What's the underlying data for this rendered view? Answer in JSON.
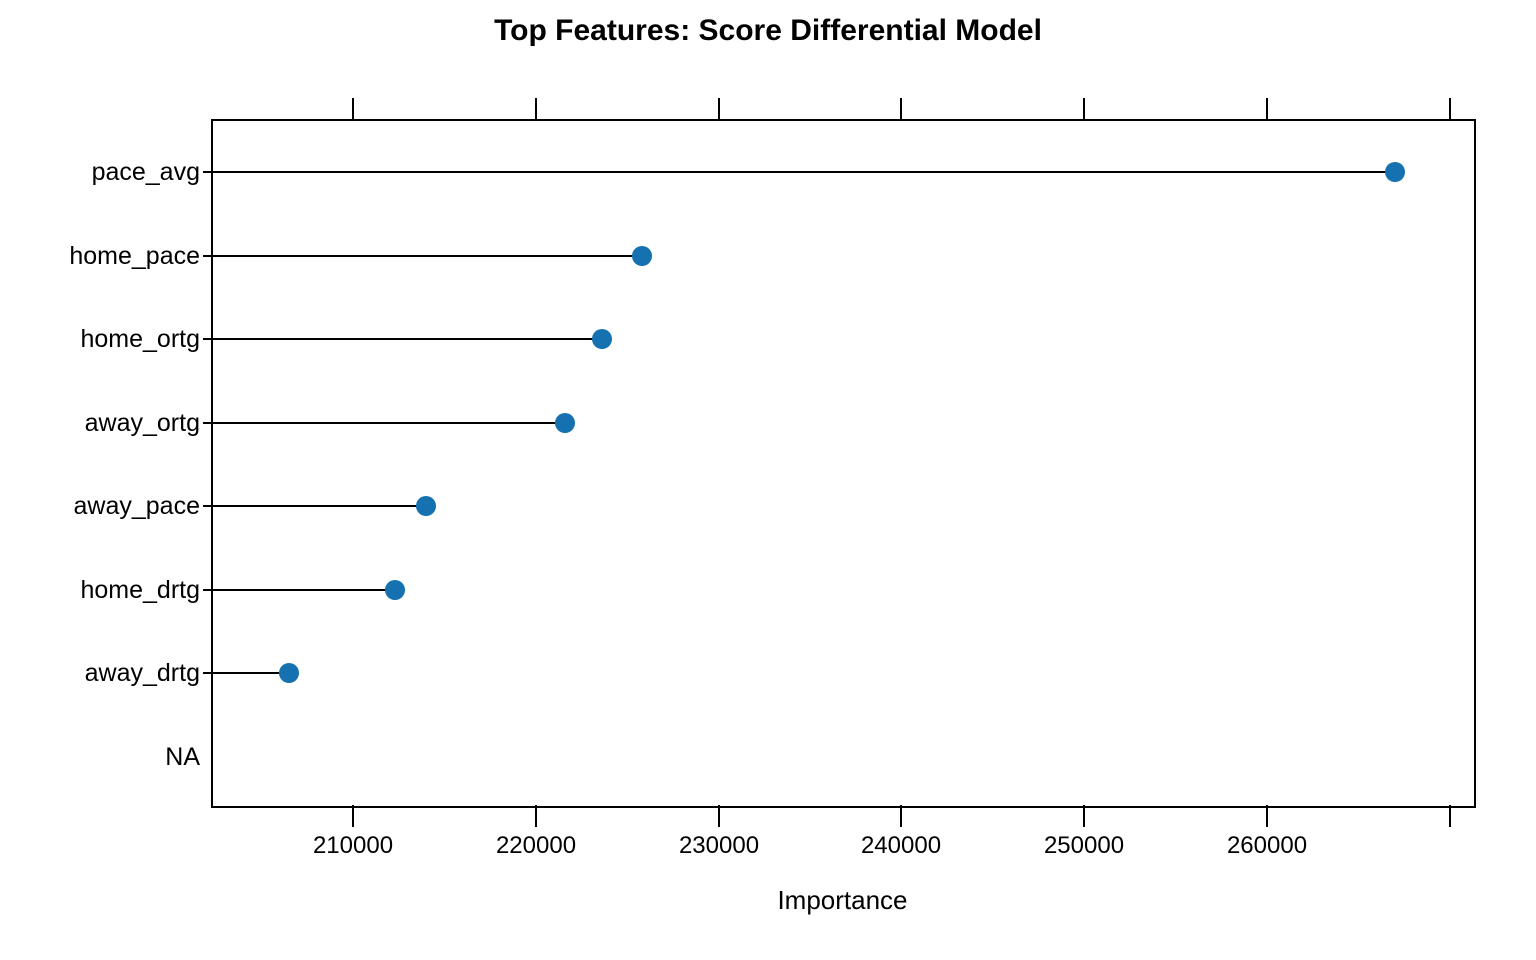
{
  "title": "Top Features: Score Differential Model",
  "x_axis_label": "Importance",
  "chart_data": {
    "type": "dot",
    "orientation": "horizontal-lollipop",
    "title": "Top Features: Score Differential Model",
    "xlabel": "Importance",
    "ylabel": "",
    "categories": [
      "pace_avg",
      "home_pace",
      "home_ortg",
      "away_ortg",
      "away_pace",
      "home_drtg",
      "away_drtg",
      "NA"
    ],
    "values": [
      267000,
      225800,
      223600,
      221600,
      214000,
      212300,
      206500,
      null
    ],
    "xlim": [
      202300,
      271250
    ],
    "x_ticks": [
      210000,
      220000,
      230000,
      240000,
      250000,
      260000,
      270000
    ],
    "x_tick_labels": [
      "210000",
      "220000",
      "230000",
      "240000",
      "250000",
      "260000",
      ""
    ],
    "grid": false,
    "legend": null,
    "dot_color": "#1571b0",
    "stem_color": "#000000",
    "axis_color": "#000000",
    "background_color": "#ffffff"
  }
}
